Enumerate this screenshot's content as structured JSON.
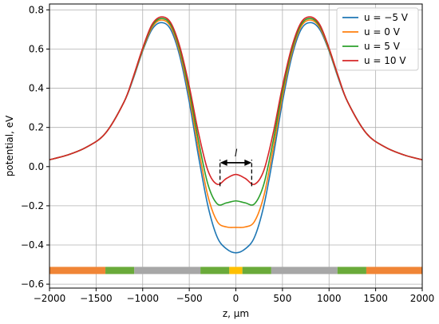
{
  "chart_data": {
    "type": "line",
    "title": "",
    "xlabel": "z, μm",
    "ylabel": "potential, eV",
    "xlim": [
      -2000,
      2000
    ],
    "ylim": [
      -0.62,
      0.83
    ],
    "grid": true,
    "legend_position": "top-right",
    "x_ticks": [
      -2000,
      -1500,
      -1000,
      -500,
      0,
      500,
      1000,
      1500,
      2000
    ],
    "x_tick_labels": [
      "−2000",
      "−1500",
      "−1000",
      "−500",
      "0",
      "500",
      "1000",
      "1500",
      "2000"
    ],
    "y_ticks": [
      -0.6,
      -0.4,
      -0.2,
      0.0,
      0.2,
      0.4,
      0.6,
      0.8
    ],
    "y_tick_labels": [
      "−0.6",
      "−0.4",
      "−0.2",
      "0.0",
      "0.2",
      "0.4",
      "0.6",
      "0.8"
    ],
    "series": [
      {
        "name": "u = −5 V",
        "color": "#1f77b4",
        "points": [
          [
            -2000,
            0.035
          ],
          [
            -1800,
            0.06
          ],
          [
            -1600,
            0.1
          ],
          [
            -1400,
            0.17
          ],
          [
            -1200,
            0.33
          ],
          [
            -1100,
            0.45
          ],
          [
            -1000,
            0.59
          ],
          [
            -900,
            0.7
          ],
          [
            -800,
            0.735
          ],
          [
            -700,
            0.7
          ],
          [
            -600,
            0.56
          ],
          [
            -500,
            0.33
          ],
          [
            -400,
            0.05
          ],
          [
            -300,
            -0.2
          ],
          [
            -200,
            -0.36
          ],
          [
            -100,
            -0.42
          ],
          [
            0,
            -0.44
          ],
          [
            100,
            -0.42
          ],
          [
            200,
            -0.36
          ],
          [
            300,
            -0.2
          ],
          [
            400,
            0.05
          ],
          [
            500,
            0.33
          ],
          [
            600,
            0.56
          ],
          [
            700,
            0.7
          ],
          [
            800,
            0.735
          ],
          [
            900,
            0.7
          ],
          [
            1000,
            0.59
          ],
          [
            1100,
            0.45
          ],
          [
            1200,
            0.33
          ],
          [
            1400,
            0.17
          ],
          [
            1600,
            0.1
          ],
          [
            1800,
            0.06
          ],
          [
            2000,
            0.035
          ]
        ]
      },
      {
        "name": "u = 0 V",
        "color": "#ff7f0e",
        "points": [
          [
            -2000,
            0.035
          ],
          [
            -1800,
            0.06
          ],
          [
            -1600,
            0.1
          ],
          [
            -1400,
            0.17
          ],
          [
            -1200,
            0.33
          ],
          [
            -1100,
            0.455
          ],
          [
            -1000,
            0.595
          ],
          [
            -900,
            0.71
          ],
          [
            -800,
            0.748
          ],
          [
            -700,
            0.715
          ],
          [
            -600,
            0.58
          ],
          [
            -500,
            0.36
          ],
          [
            -400,
            0.09
          ],
          [
            -300,
            -0.15
          ],
          [
            -200,
            -0.28
          ],
          [
            -100,
            -0.308
          ],
          [
            0,
            -0.31
          ],
          [
            100,
            -0.308
          ],
          [
            200,
            -0.28
          ],
          [
            300,
            -0.15
          ],
          [
            400,
            0.09
          ],
          [
            500,
            0.36
          ],
          [
            600,
            0.58
          ],
          [
            700,
            0.715
          ],
          [
            800,
            0.748
          ],
          [
            900,
            0.71
          ],
          [
            1000,
            0.595
          ],
          [
            1100,
            0.455
          ],
          [
            1200,
            0.33
          ],
          [
            1400,
            0.17
          ],
          [
            1600,
            0.1
          ],
          [
            1800,
            0.06
          ],
          [
            2000,
            0.035
          ]
        ]
      },
      {
        "name": "u = 5 V",
        "color": "#2ca02c",
        "points": [
          [
            -2000,
            0.035
          ],
          [
            -1800,
            0.06
          ],
          [
            -1600,
            0.1
          ],
          [
            -1400,
            0.17
          ],
          [
            -1200,
            0.33
          ],
          [
            -1100,
            0.458
          ],
          [
            -1000,
            0.6
          ],
          [
            -900,
            0.718
          ],
          [
            -800,
            0.756
          ],
          [
            -700,
            0.725
          ],
          [
            -600,
            0.595
          ],
          [
            -500,
            0.385
          ],
          [
            -400,
            0.13
          ],
          [
            -300,
            -0.09
          ],
          [
            -200,
            -0.19
          ],
          [
            -100,
            -0.185
          ],
          [
            0,
            -0.175
          ],
          [
            100,
            -0.185
          ],
          [
            200,
            -0.19
          ],
          [
            300,
            -0.09
          ],
          [
            400,
            0.13
          ],
          [
            500,
            0.385
          ],
          [
            600,
            0.595
          ],
          [
            700,
            0.725
          ],
          [
            800,
            0.756
          ],
          [
            900,
            0.718
          ],
          [
            1000,
            0.6
          ],
          [
            1100,
            0.458
          ],
          [
            1200,
            0.33
          ],
          [
            1400,
            0.17
          ],
          [
            1600,
            0.1
          ],
          [
            1800,
            0.06
          ],
          [
            2000,
            0.035
          ]
        ]
      },
      {
        "name": "u = 10 V",
        "color": "#d62728",
        "points": [
          [
            -2000,
            0.035
          ],
          [
            -1800,
            0.06
          ],
          [
            -1600,
            0.1
          ],
          [
            -1400,
            0.17
          ],
          [
            -1200,
            0.33
          ],
          [
            -1100,
            0.46
          ],
          [
            -1000,
            0.605
          ],
          [
            -900,
            0.725
          ],
          [
            -800,
            0.764
          ],
          [
            -700,
            0.735
          ],
          [
            -600,
            0.61
          ],
          [
            -500,
            0.41
          ],
          [
            -400,
            0.17
          ],
          [
            -300,
            -0.02
          ],
          [
            -200,
            -0.09
          ],
          [
            -100,
            -0.06
          ],
          [
            0,
            -0.04
          ],
          [
            100,
            -0.06
          ],
          [
            200,
            -0.09
          ],
          [
            300,
            -0.02
          ],
          [
            400,
            0.17
          ],
          [
            500,
            0.41
          ],
          [
            600,
            0.61
          ],
          [
            700,
            0.735
          ],
          [
            800,
            0.764
          ],
          [
            900,
            0.725
          ],
          [
            1000,
            0.605
          ],
          [
            1100,
            0.46
          ],
          [
            1200,
            0.33
          ],
          [
            1400,
            0.17
          ],
          [
            1600,
            0.1
          ],
          [
            1800,
            0.06
          ],
          [
            2000,
            0.035
          ]
        ]
      }
    ],
    "annotation": {
      "label": "l",
      "x_from": -170,
      "x_to": 170,
      "arrow_y": 0.02,
      "dashed_from_y": -0.1,
      "dashed_to_y": 0.035
    },
    "electrode_bar": {
      "y": -0.53,
      "segments": [
        {
          "x0": -2000,
          "x1": -1400,
          "color": "#f08536"
        },
        {
          "x0": -1400,
          "x1": -1090,
          "color": "#6aaa3a"
        },
        {
          "x0": -1090,
          "x1": -380,
          "color": "#a7a7a7"
        },
        {
          "x0": -380,
          "x1": -70,
          "color": "#6aaa3a"
        },
        {
          "x0": -70,
          "x1": 70,
          "color": "#ffc000"
        },
        {
          "x0": 70,
          "x1": 380,
          "color": "#6aaa3a"
        },
        {
          "x0": 380,
          "x1": 1090,
          "color": "#a7a7a7"
        },
        {
          "x0": 1090,
          "x1": 1400,
          "color": "#6aaa3a"
        },
        {
          "x0": 1400,
          "x1": 2000,
          "color": "#f08536"
        }
      ]
    }
  }
}
